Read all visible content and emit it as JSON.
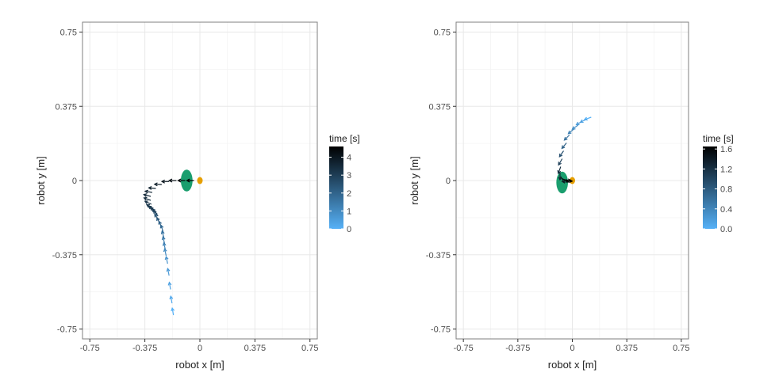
{
  "chart_data": [
    {
      "type": "scatter",
      "subtype": "trajectory-arrows",
      "xlabel": "robot x [m]",
      "ylabel": "robot y [m]",
      "xlim": [
        -0.8,
        0.8
      ],
      "ylim": [
        -0.8,
        0.8
      ],
      "x_ticks": [
        -0.75,
        -0.375,
        0,
        0.375,
        0.75
      ],
      "x_tick_labels": [
        "-0.75",
        "-0.375",
        "0",
        "0.375",
        "0.75"
      ],
      "y_ticks": [
        -0.75,
        -0.375,
        0,
        0.375,
        0.75
      ],
      "y_tick_labels": [
        "-0.75",
        "-0.375",
        "0",
        "0.375",
        "0.75"
      ],
      "grid": true,
      "legend": {
        "title": "time [s]",
        "placement": "right",
        "range": [
          0,
          4.6
        ],
        "ticks": [
          0,
          1,
          2,
          3,
          4
        ],
        "tick_labels": [
          "0",
          "1",
          "2",
          "3",
          "4"
        ],
        "color_low": "#56B1F7",
        "color_high": "#000000"
      },
      "obstacle": {
        "x": -0.09,
        "y": 0.0,
        "rx": 0.04,
        "ry": 0.055,
        "color": "#1a9e6e"
      },
      "goal": {
        "x": 0.0,
        "y": 0.0,
        "color": "#E69F00"
      },
      "trajectory": {
        "x": [
          -0.18,
          -0.19,
          -0.2,
          -0.21,
          -0.22,
          -0.23,
          -0.235,
          -0.24,
          -0.245,
          -0.25,
          -0.26,
          -0.27,
          -0.28,
          -0.285,
          -0.29,
          -0.3,
          -0.31,
          -0.32,
          -0.33,
          -0.335,
          -0.335,
          -0.325,
          -0.3,
          -0.26,
          -0.21,
          -0.16,
          -0.1,
          -0.04
        ],
        "y": [
          -0.68,
          -0.62,
          -0.55,
          -0.48,
          -0.42,
          -0.38,
          -0.35,
          -0.32,
          -0.29,
          -0.26,
          -0.24,
          -0.22,
          -0.2,
          -0.18,
          -0.17,
          -0.16,
          -0.15,
          -0.14,
          -0.12,
          -0.1,
          -0.08,
          -0.06,
          -0.04,
          -0.02,
          -0.005,
          0.0,
          0.0,
          0.0
        ],
        "time": [
          0.0,
          0.2,
          0.4,
          0.6,
          0.8,
          1.0,
          1.2,
          1.4,
          1.6,
          1.8,
          2.0,
          2.2,
          2.4,
          2.6,
          2.8,
          3.0,
          3.1,
          3.2,
          3.3,
          3.4,
          3.5,
          3.6,
          3.7,
          3.85,
          4.0,
          4.2,
          4.4,
          4.6
        ],
        "heading_deg": [
          100,
          100,
          100,
          101,
          102,
          102,
          103,
          104,
          105,
          108,
          112,
          118,
          125,
          130,
          135,
          140,
          145,
          150,
          155,
          160,
          165,
          170,
          175,
          178,
          180,
          180,
          180,
          180
        ]
      }
    },
    {
      "type": "scatter",
      "subtype": "trajectory-arrows",
      "xlabel": "robot x [m]",
      "ylabel": "robot y [m]",
      "xlim": [
        -0.8,
        0.8
      ],
      "ylim": [
        -0.8,
        0.8
      ],
      "x_ticks": [
        -0.75,
        -0.375,
        0,
        0.375,
        0.75
      ],
      "x_tick_labels": [
        "-0.75",
        "-0.375",
        "0",
        "0.375",
        "0.75"
      ],
      "y_ticks": [
        -0.75,
        -0.375,
        0,
        0.375,
        0.75
      ],
      "y_tick_labels": [
        "-0.75",
        "-0.375",
        "0",
        "0.375",
        "0.75"
      ],
      "grid": true,
      "legend": {
        "title": "time [s]",
        "placement": "right",
        "range": [
          0,
          1.65
        ],
        "ticks": [
          0.0,
          0.4,
          0.8,
          1.2,
          1.6
        ],
        "tick_labels": [
          "0.0",
          "0.4",
          "0.8",
          "1.2",
          "1.6"
        ],
        "color_low": "#56B1F7",
        "color_high": "#000000"
      },
      "obstacle": {
        "x": -0.07,
        "y": -0.01,
        "rx": 0.04,
        "ry": 0.055,
        "color": "#1a9e6e"
      },
      "goal": {
        "x": 0.0,
        "y": 0.0,
        "color": "#E69F00"
      },
      "trajectory": {
        "x": [
          0.13,
          0.1,
          0.07,
          0.04,
          0.01,
          -0.02,
          -0.04,
          -0.06,
          -0.07,
          -0.08,
          -0.085,
          -0.08,
          -0.07,
          -0.06,
          -0.05
        ],
        "y": [
          0.32,
          0.31,
          0.3,
          0.28,
          0.26,
          0.23,
          0.19,
          0.15,
          0.11,
          0.07,
          0.04,
          0.02,
          0.01,
          0.005,
          0.0
        ],
        "time": [
          0.0,
          0.1,
          0.2,
          0.3,
          0.45,
          0.6,
          0.75,
          0.9,
          1.05,
          1.2,
          1.3,
          1.4,
          1.5,
          1.58,
          1.65
        ],
        "heading_deg": [
          200,
          205,
          210,
          215,
          220,
          225,
          230,
          235,
          240,
          250,
          270,
          300,
          330,
          350,
          355
        ]
      }
    }
  ]
}
